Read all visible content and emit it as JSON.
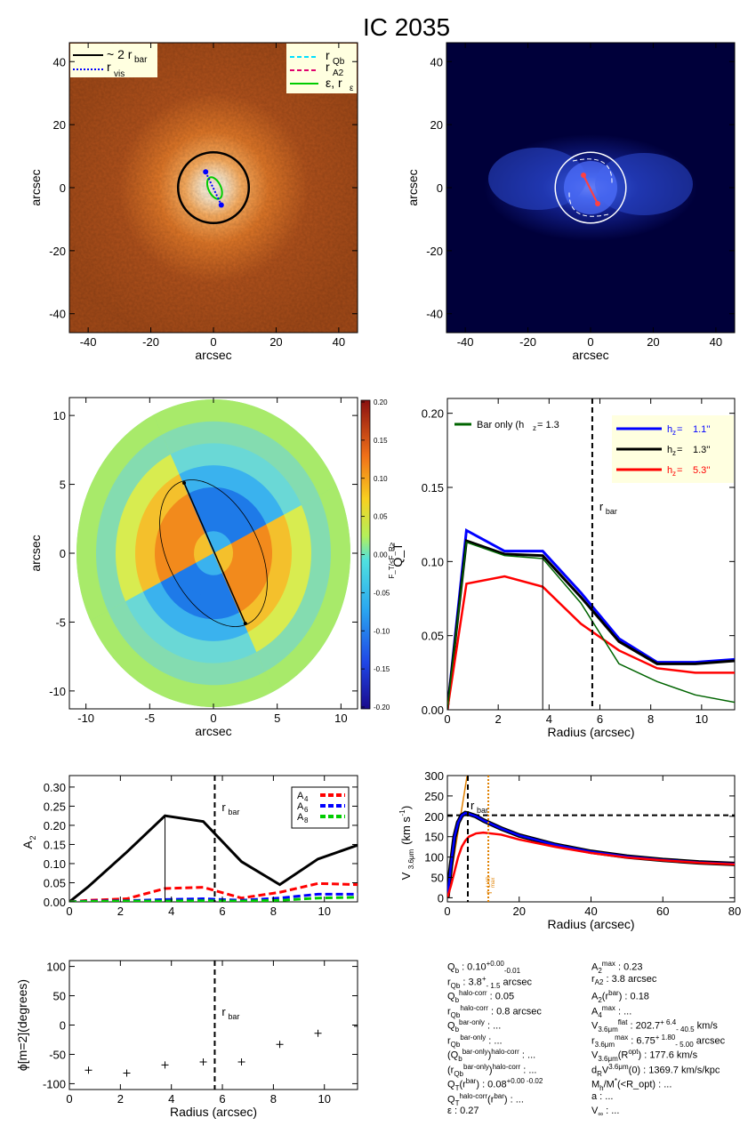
{
  "title": "IC 2035",
  "colors": {
    "black": "#000000",
    "blue": "#0000ff",
    "red": "#ff0000",
    "green": "#00cc00",
    "darkgreen": "#006400",
    "cyan": "#00e0ff",
    "magenta": "#e0006e",
    "orange": "#e08000",
    "legend_bg": "#ffffe0"
  },
  "panel1": {
    "xlabel": "arcsec",
    "ylabel": "arcsec",
    "xticks": [
      "-40",
      "-20",
      "0",
      "20",
      "40"
    ],
    "yticks": [
      "40",
      "20",
      "0",
      "-20",
      "-40"
    ],
    "legend_left": [
      "~ 2 r",
      "bar",
      "r",
      "vis"
    ],
    "legend_right": [
      "r",
      "Qb",
      "r",
      "A2",
      "ε, r",
      "ε"
    ]
  },
  "panel2": {
    "xlabel": "arcsec",
    "ylabel": "arcsec",
    "xticks": [
      "-40",
      "-20",
      "0",
      "20",
      "40"
    ],
    "yticks": [
      "40",
      "20",
      "0",
      "-20",
      "-40"
    ]
  },
  "panel3": {
    "xlabel": "arcsec",
    "ylabel": "arcsec",
    "xticks": [
      "-10",
      "-5",
      "0",
      "5",
      "10"
    ],
    "yticks": [
      "10",
      "5",
      "0",
      "-5",
      "-10"
    ],
    "colorbar_ticks": [
      "0.20",
      "0.15",
      "0.10",
      "0.05",
      "0.00",
      "-0.05",
      "-0.10",
      "-0.15",
      "-0.20"
    ],
    "colorbar_label": "F_T/<F_R>"
  },
  "panel4": {
    "xlabel": "Radius (arcsec)",
    "ylabel": "Q_T",
    "xticks": [
      "0",
      "2",
      "4",
      "6",
      "8",
      "10"
    ],
    "yticks": [
      "0.00",
      "0.05",
      "0.10",
      "0.15",
      "0.20"
    ],
    "rbar_label": "r",
    "rbar_sub": "bar",
    "legend_bar": "Bar only (h",
    "legend_bar_tail": "=    1.3",
    "legend_entries": [
      {
        "name": "h",
        "value": "1.1''"
      },
      {
        "name": "h",
        "value": "1.3''"
      },
      {
        "name": "h",
        "value": "5.3''"
      }
    ]
  },
  "panel5": {
    "xlabel": "",
    "ylabel": "A",
    "ylabel_sub": "2",
    "xticks": [
      "0",
      "2",
      "4",
      "6",
      "8",
      "10"
    ],
    "yticks": [
      "0.00",
      "0.05",
      "0.10",
      "0.15",
      "0.20",
      "0.25",
      "0.30"
    ],
    "rbar_label": "r",
    "rbar_sub": "bar",
    "legend": [
      {
        "name": "A",
        "sub": "4"
      },
      {
        "name": "A",
        "sub": "6"
      },
      {
        "name": "A",
        "sub": "8"
      }
    ]
  },
  "panel6": {
    "xlabel": "Radius (arcsec)",
    "ylabel": "V",
    "ylabel_sub": "3.6μm",
    "ylabel_tail": "(km s",
    "ylabel_sup": "-1",
    "xticks": [
      "0",
      "20",
      "40",
      "60",
      "80"
    ],
    "yticks": [
      "0",
      "50",
      "100",
      "150",
      "200",
      "250",
      "300"
    ],
    "rbar_label": "r",
    "rbar_sub": "bar",
    "rmax_label": "r",
    "rmax_sup": "1/4R",
    "rmax_sub": "max"
  },
  "panel7": {
    "xlabel": "Radius (arcsec)",
    "ylabel": "ϕ[m=2](degrees)",
    "xticks": [
      "0",
      "2",
      "4",
      "6",
      "8",
      "10"
    ],
    "yticks": [
      "100",
      "50",
      "0",
      "-50",
      "-100"
    ],
    "rbar_label": "r",
    "rbar_sub": "bar"
  },
  "chart_data": [
    {
      "type": "heatmap",
      "name": "panel1",
      "xlim": [
        -46,
        46
      ],
      "ylim": [
        -46,
        46
      ],
      "circle_radius": 11.3,
      "rvis_endpoints": [
        [
          -2.5,
          5
        ],
        [
          2.5,
          -5.5
        ]
      ]
    },
    {
      "type": "heatmap",
      "name": "panel2",
      "xlim": [
        -46,
        46
      ],
      "ylim": [
        -46,
        46
      ]
    },
    {
      "type": "heatmap",
      "name": "panel3",
      "xlim": [
        -11.3,
        11.3
      ],
      "ylim": [
        -11.3,
        11.3
      ],
      "bar_endpoints": [
        [
          -2.3,
          5.1
        ],
        [
          2.5,
          -5.1
        ]
      ],
      "ellipse": {
        "a": 5.7,
        "b": 3.6,
        "angle_deg": -64
      },
      "colorbar_range": [
        -0.2,
        0.2
      ]
    },
    {
      "type": "line",
      "name": "panel4",
      "xlim": [
        0,
        11.3
      ],
      "ylim": [
        0,
        0.21
      ],
      "x": [
        0,
        0.75,
        2.25,
        3.75,
        5.25,
        6.75,
        8.25,
        9.75,
        11.3
      ],
      "series": [
        {
          "name": "h_z=1.1''",
          "values": [
            0,
            0.121,
            0.107,
            0.107,
            0.079,
            0.048,
            0.032,
            0.032,
            0.034
          ]
        },
        {
          "name": "h_z=1.3''",
          "values": [
            0,
            0.114,
            0.105,
            0.104,
            0.076,
            0.046,
            0.031,
            0.031,
            0.033
          ]
        },
        {
          "name": "h_z=5.3''",
          "values": [
            0,
            0.085,
            0.09,
            0.083,
            0.058,
            0.04,
            0.028,
            0.025,
            0.025
          ]
        },
        {
          "name": "Bar only (h_z=1.3'')",
          "values": [
            0,
            0.113,
            0.104,
            0.102,
            0.072,
            0.031,
            0.019,
            0.01,
            0.005
          ]
        }
      ],
      "rbar": 5.7,
      "qb_marker": 3.75
    },
    {
      "type": "line",
      "name": "panel5",
      "xlim": [
        0,
        11.3
      ],
      "ylim": [
        0,
        0.33
      ],
      "x": [
        0,
        0.75,
        2.25,
        3.75,
        5.25,
        6.75,
        8.25,
        9.75,
        11.3
      ],
      "series": [
        {
          "name": "A2",
          "values": [
            0,
            0.04,
            0.13,
            0.225,
            0.21,
            0.105,
            0.045,
            0.112,
            0.148
          ]
        },
        {
          "name": "A4",
          "values": [
            0,
            0.004,
            0.008,
            0.035,
            0.038,
            0.01,
            0.025,
            0.048,
            0.045
          ]
        },
        {
          "name": "A6",
          "values": [
            0,
            0.002,
            0.003,
            0.006,
            0.008,
            0.004,
            0.01,
            0.02,
            0.02
          ]
        },
        {
          "name": "A8",
          "values": [
            0,
            0.001,
            0.002,
            0.002,
            0.003,
            0.002,
            0.004,
            0.01,
            0.012
          ]
        }
      ],
      "rbar": 5.7,
      "a2_marker": 3.75
    },
    {
      "type": "line",
      "name": "panel6",
      "xlim": [
        0,
        80
      ],
      "ylim": [
        -10,
        300
      ],
      "series": [
        {
          "name": "total",
          "x": [
            0,
            1,
            2,
            3,
            4,
            5,
            6,
            8,
            10,
            15,
            20,
            30,
            40,
            50,
            60,
            70,
            80
          ],
          "values": [
            0,
            80,
            150,
            185,
            202,
            208,
            206,
            200,
            190,
            170,
            153,
            130,
            113,
            101,
            93,
            87,
            83
          ]
        },
        {
          "name": "disk",
          "x": [
            0,
            1,
            2,
            3,
            4,
            5,
            6,
            8,
            10,
            15,
            20,
            30,
            40,
            50,
            60,
            70,
            80
          ],
          "values": [
            0,
            30,
            65,
            100,
            125,
            140,
            150,
            158,
            160,
            155,
            143,
            125,
            110,
            99,
            92,
            86,
            82
          ]
        }
      ],
      "vflat": 202.7,
      "rbar": 5.7,
      "rmax": 11.4
    },
    {
      "type": "scatter",
      "name": "panel7",
      "xlim": [
        0,
        11.3
      ],
      "ylim": [
        -110,
        110
      ],
      "x": [
        0.75,
        2.25,
        3.75,
        5.25,
        6.75,
        8.25,
        9.75,
        11.3
      ],
      "values": [
        -77,
        -82,
        -68,
        -63,
        -63,
        -33,
        -14,
        -2
      ],
      "rbar": 5.7
    }
  ],
  "stats_left": [
    [
      "Q",
      "b",
      "",
      " :  0.10",
      "+0.00",
      "-0.01",
      ""
    ],
    [
      "r",
      "Qb",
      "",
      " :   3.8",
      "+",
      "- 1.5",
      " arcsec"
    ],
    [
      "Q",
      "b",
      "halo-corr",
      " :  0.05",
      "",
      "",
      ""
    ],
    [
      "r",
      "Qb",
      "halo-corr",
      " :  0.8 arcsec",
      "",
      "",
      ""
    ],
    [
      "Q",
      "b",
      "bar-only",
      " : ...",
      "",
      "",
      ""
    ],
    [
      "r",
      "Qb",
      "bar-only",
      " : ...",
      "",
      "",
      ""
    ],
    [
      "(Q",
      "b",
      "bar-only",
      ")",
      "halo-corr",
      "",
      " : ..."
    ],
    [
      "(r",
      "Qb",
      "bar-only",
      ")",
      "halo-corr",
      "",
      " : ..."
    ],
    [
      "Q",
      "T",
      "",
      "(r",
      "bar",
      "",
      ") :  0.08"
    ],
    [
      "Q",
      "T",
      "halo-corr",
      "(r",
      "bar",
      "",
      ") : ..."
    ],
    [
      "ε",
      "",
      "",
      " :  0.27",
      "",
      "",
      ""
    ]
  ],
  "stats_left_tail": [
    "",
    "",
    "",
    "",
    "",
    "",
    "",
    "",
    "+0.00 -0.02",
    "",
    ""
  ],
  "stats_right": [
    [
      "A",
      "2",
      "max",
      " :  0.23",
      "",
      "",
      ""
    ],
    [
      "r",
      "A2",
      "",
      " :  3.8 arcsec",
      "",
      "",
      ""
    ],
    [
      "A",
      "2",
      "",
      "(r",
      "bar",
      "",
      ") :  0.18"
    ],
    [
      "A",
      "4",
      "max",
      " : ...",
      "",
      "",
      ""
    ],
    [
      "V",
      "3.6μm",
      "flat",
      " :  202.7",
      "+ 6.4",
      "- 40.5",
      " km/s"
    ],
    [
      "r",
      "3.6μm",
      "max",
      " :  6.75",
      "+ 1.80",
      "- 5.00",
      " arcsec"
    ],
    [
      "V",
      "3.6μm",
      "",
      "(R",
      "opt",
      "",
      ") :  177.6 km/s"
    ],
    [
      "d",
      "R",
      "",
      "V",
      "3.6μm",
      "",
      "(0) :  1369.7 km/s/kpc"
    ],
    [
      "M",
      "h",
      "",
      "/M",
      "*",
      "",
      "(<R_opt) : ..."
    ],
    [
      "a",
      "",
      "",
      " : ...",
      "",
      "",
      ""
    ],
    [
      "V",
      "∞",
      "",
      " : ...",
      "",
      "",
      ""
    ]
  ]
}
